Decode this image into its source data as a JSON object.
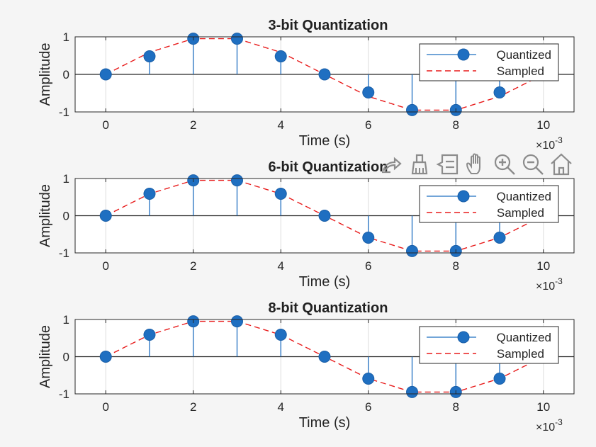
{
  "colors": {
    "quantized": "#1f6fc1",
    "sampled": "#e81c1c",
    "axes": "#262626",
    "grid": "#dcdcdc",
    "background": "#f5f5f5"
  },
  "toolbar": {
    "icons": [
      "export-icon",
      "brush-icon",
      "datatip-icon",
      "pan-icon",
      "zoom-in-icon",
      "zoom-out-icon",
      "home-icon"
    ]
  },
  "chart_data": [
    {
      "type": "stem",
      "title": "3-bit Quantization",
      "xlabel": "Time (s)",
      "ylabel": "Amplitude",
      "x_exponent_base": "×10",
      "x_exponent": "-3",
      "xlim": [
        -0.0007,
        0.0107
      ],
      "ylim": [
        -1,
        1
      ],
      "xticks": [
        "0",
        "2",
        "4",
        "6",
        "8",
        "10"
      ],
      "yticks": [
        "-1",
        "0",
        "1"
      ],
      "legend": [
        "Quantized",
        "Sampled"
      ],
      "legend_position": "top-right",
      "x": [
        0,
        0.001,
        0.002,
        0.003,
        0.004,
        0.005,
        0.006,
        0.007,
        0.008,
        0.009,
        0.01
      ],
      "series": [
        {
          "name": "Quantized",
          "values": [
            0,
            0.48,
            0.95,
            0.95,
            0.48,
            0,
            -0.48,
            -0.95,
            -0.95,
            -0.48,
            0
          ]
        },
        {
          "name": "Sampled",
          "values": [
            0,
            0.588,
            0.951,
            0.951,
            0.588,
            0,
            -0.588,
            -0.951,
            -0.951,
            -0.588,
            0
          ]
        }
      ]
    },
    {
      "type": "stem",
      "title": "6-bit Quantization",
      "xlabel": "Time (s)",
      "ylabel": "Amplitude",
      "x_exponent_base": "×10",
      "x_exponent": "-3",
      "xlim": [
        -0.0007,
        0.0107
      ],
      "ylim": [
        -1,
        1
      ],
      "xticks": [
        "0",
        "2",
        "4",
        "6",
        "8",
        "10"
      ],
      "yticks": [
        "-1",
        "0",
        "1"
      ],
      "legend": [
        "Quantized",
        "Sampled"
      ],
      "legend_position": "top-right",
      "x": [
        0,
        0.001,
        0.002,
        0.003,
        0.004,
        0.005,
        0.006,
        0.007,
        0.008,
        0.009,
        0.01
      ],
      "series": [
        {
          "name": "Quantized",
          "values": [
            0,
            0.59,
            0.95,
            0.95,
            0.59,
            0,
            -0.59,
            -0.95,
            -0.95,
            -0.59,
            0
          ]
        },
        {
          "name": "Sampled",
          "values": [
            0,
            0.588,
            0.951,
            0.951,
            0.588,
            0,
            -0.588,
            -0.951,
            -0.951,
            -0.588,
            0
          ]
        }
      ]
    },
    {
      "type": "stem",
      "title": "8-bit Quantization",
      "xlabel": "Time (s)",
      "ylabel": "Amplitude",
      "x_exponent_base": "×10",
      "x_exponent": "-3",
      "xlim": [
        -0.0007,
        0.0107
      ],
      "ylim": [
        -1,
        1
      ],
      "xticks": [
        "0",
        "2",
        "4",
        "6",
        "8",
        "10"
      ],
      "yticks": [
        "-1",
        "0",
        "1"
      ],
      "legend": [
        "Quantized",
        "Sampled"
      ],
      "legend_position": "top-right",
      "x": [
        0,
        0.001,
        0.002,
        0.003,
        0.004,
        0.005,
        0.006,
        0.007,
        0.008,
        0.009,
        0.01
      ],
      "series": [
        {
          "name": "Quantized",
          "values": [
            0,
            0.59,
            0.95,
            0.95,
            0.59,
            0,
            -0.59,
            -0.95,
            -0.95,
            -0.59,
            0
          ]
        },
        {
          "name": "Sampled",
          "values": [
            0,
            0.588,
            0.951,
            0.951,
            0.588,
            0,
            -0.588,
            -0.951,
            -0.951,
            -0.588,
            0
          ]
        }
      ]
    }
  ]
}
